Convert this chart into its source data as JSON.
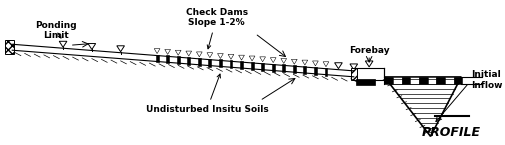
{
  "title": "PROFILE",
  "bg_color": "#ffffff",
  "text_color": "#000000",
  "fig_width": 5.06,
  "fig_height": 1.45,
  "dpi": 100,
  "labels": {
    "ponding_limit": "Ponding\nLimit",
    "check_dams": "Check Dams\nSlope 1-2%",
    "forebay": "Forebay",
    "initial_inflow": "Initial\nInflow",
    "undisturbed": "Undisturbed Insitu Soils"
  }
}
